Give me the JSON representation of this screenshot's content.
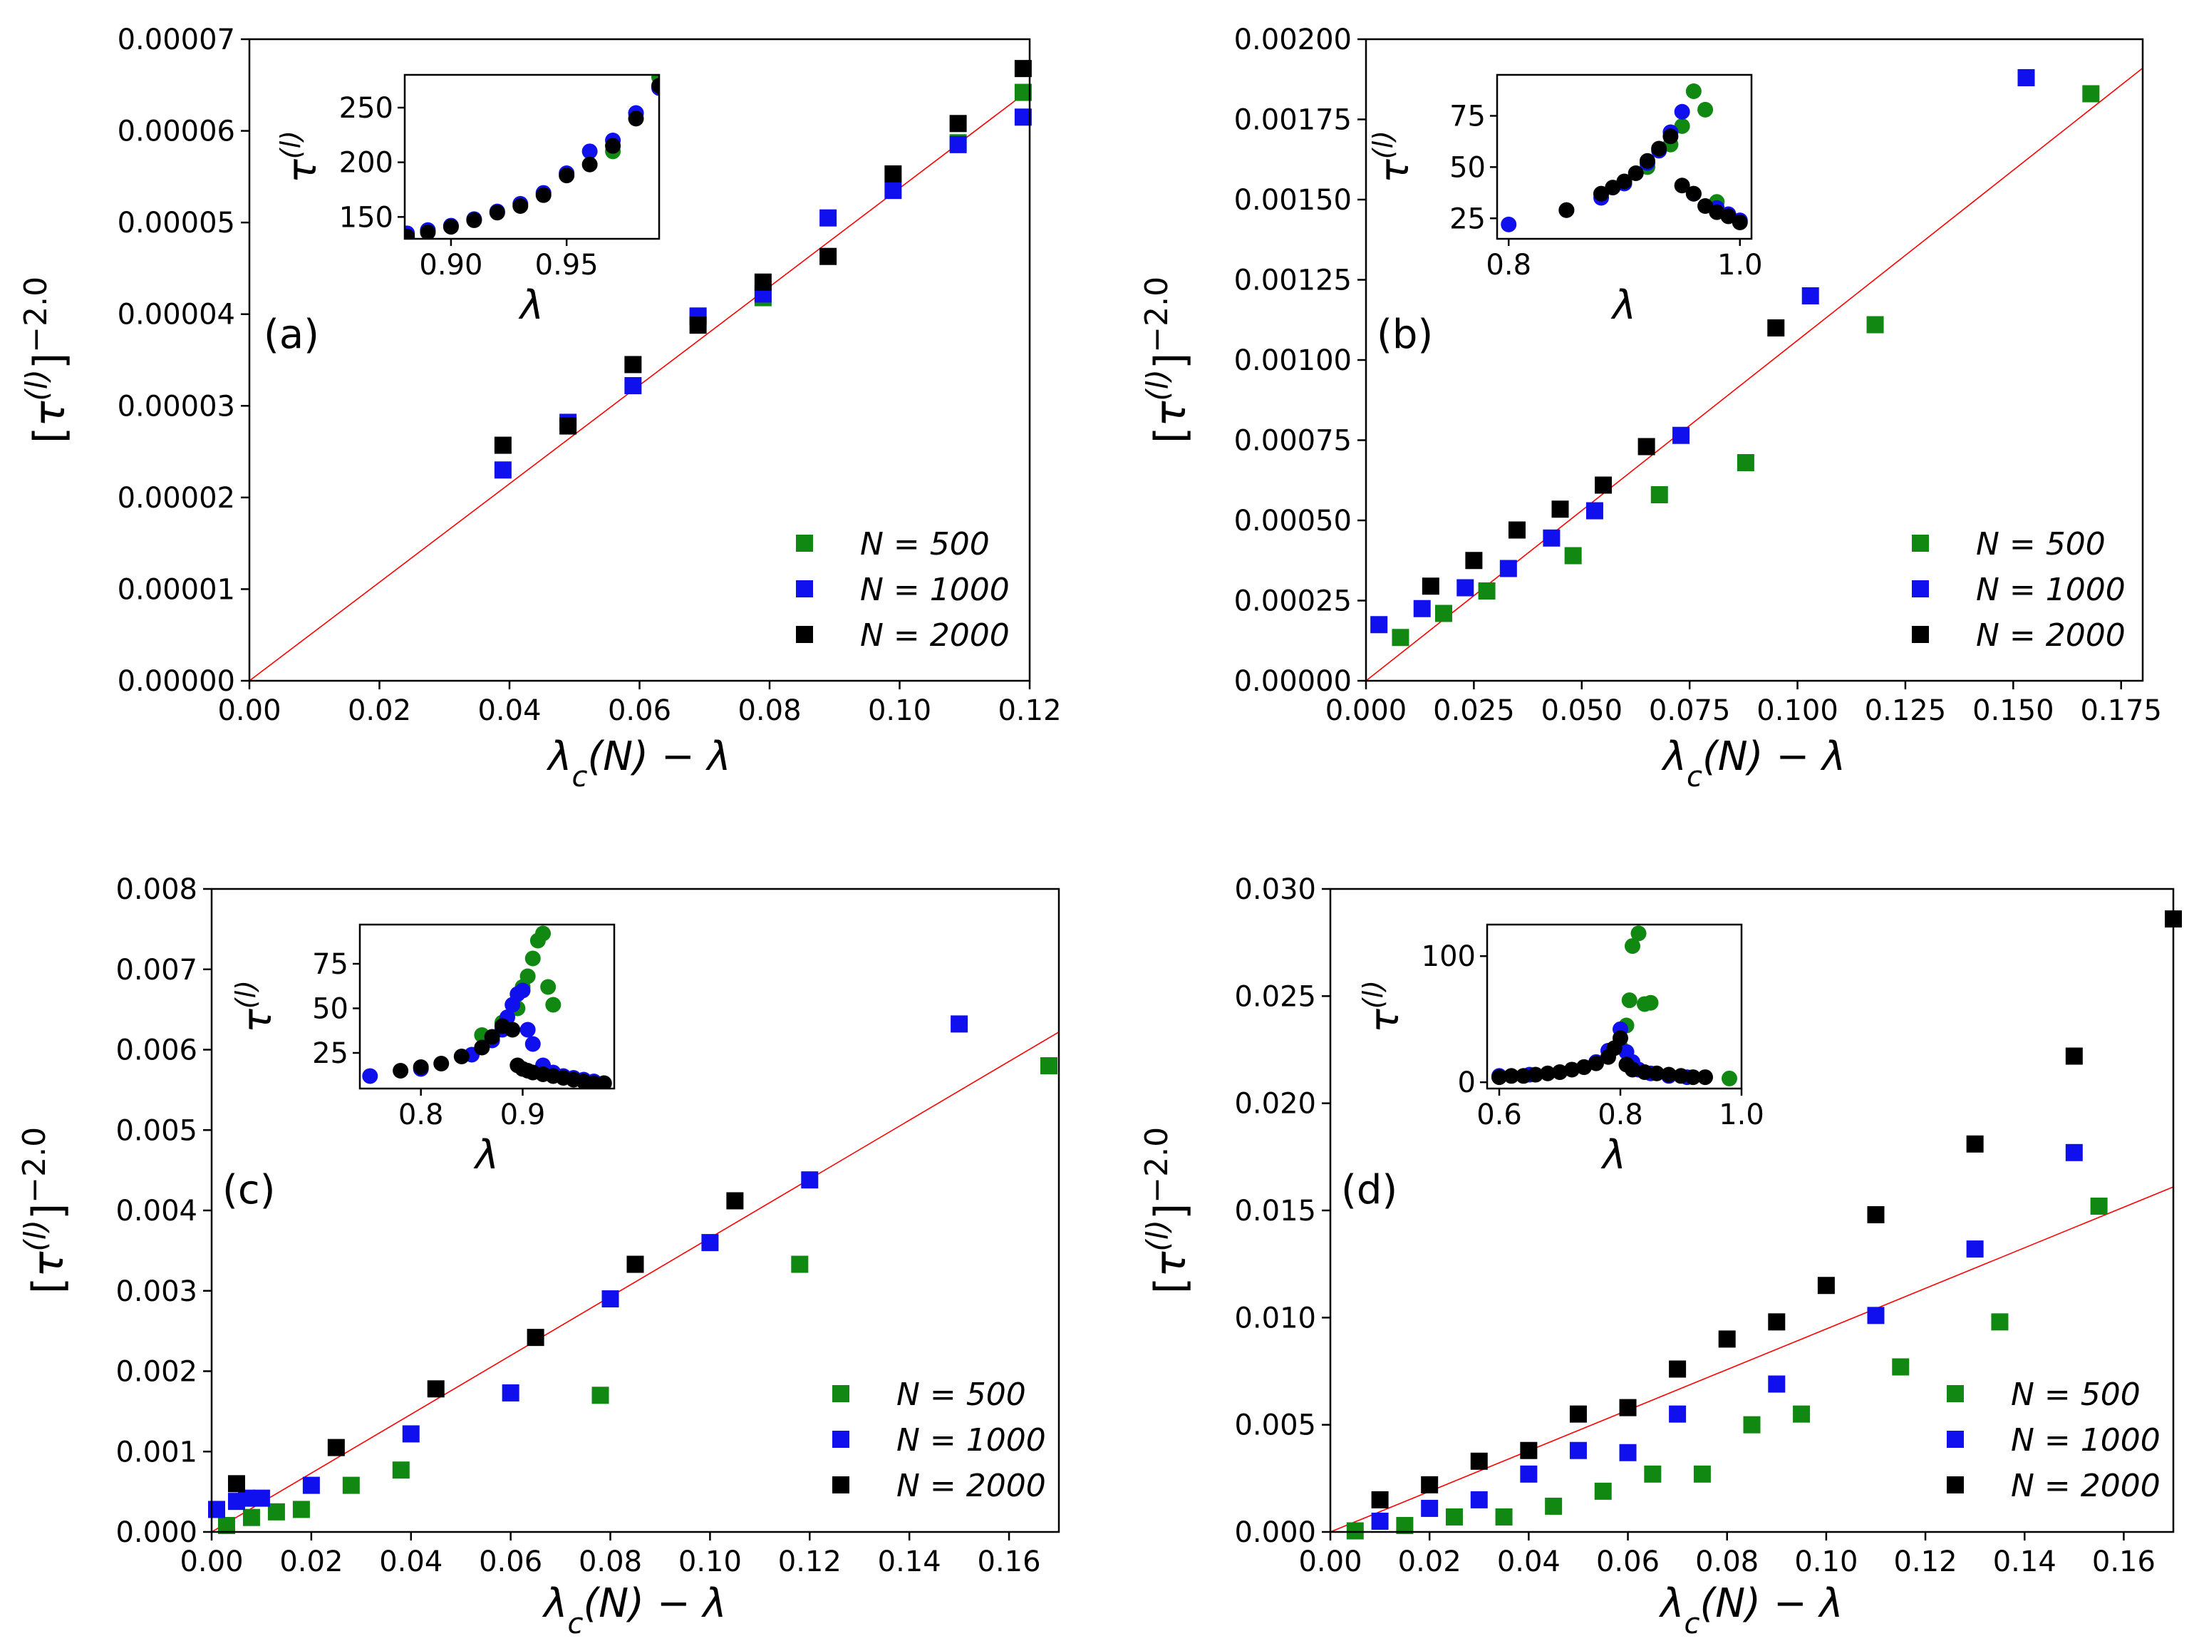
{
  "colors": {
    "N500": "#118811",
    "N1000": "#1010ee",
    "N2000": "#000000",
    "fit": "#ff0000"
  },
  "common": {
    "xlabel": "λc(N) − λ",
    "ylabel": "[τ(l)]−2.0",
    "inset_xlabel": "λ",
    "inset_ylabel": "τ(l)",
    "legend": [
      "N = 500",
      "N = 1000",
      "N = 2000"
    ]
  },
  "chart_data": [
    {
      "type": "scatter",
      "panel_label": "(a)",
      "xlim": [
        0,
        0.12
      ],
      "ylim": [
        0,
        7e-05
      ],
      "xticks": [
        0,
        0.02,
        0.04,
        0.06,
        0.08,
        0.1,
        0.12
      ],
      "xticklabels": [
        "0.00",
        "0.02",
        "0.04",
        "0.06",
        "0.08",
        "0.10",
        "0.12"
      ],
      "yticks": [
        0,
        1e-05,
        2e-05,
        3e-05,
        4e-05,
        5e-05,
        6e-05,
        7e-05
      ],
      "yticklabels": [
        "0.00000",
        "0.00001",
        "0.00002",
        "0.00003",
        "0.00004",
        "0.00005",
        "0.00006",
        "0.00007"
      ],
      "fit": {
        "x": [
          0,
          0.12
        ],
        "y": [
          0,
          6.45e-05
        ]
      },
      "series": [
        {
          "name": "N = 500",
          "color_key": "N500",
          "x": [
            0.069,
            0.079,
            0.109,
            0.119
          ],
          "y": [
            3.97e-05,
            4.18e-05,
            5.87e-05,
            6.42e-05
          ]
        },
        {
          "name": "N = 1000",
          "color_key": "N1000",
          "x": [
            0.039,
            0.049,
            0.059,
            0.069,
            0.079,
            0.089,
            0.099,
            0.109,
            0.119
          ],
          "y": [
            2.3e-05,
            2.82e-05,
            3.22e-05,
            3.98e-05,
            4.22e-05,
            5.05e-05,
            5.35e-05,
            5.85e-05,
            6.15e-05
          ]
        },
        {
          "name": "N = 2000",
          "color_key": "N2000",
          "x": [
            0.039,
            0.049,
            0.059,
            0.069,
            0.079,
            0.089,
            0.099,
            0.109,
            0.119
          ],
          "y": [
            2.57e-05,
            2.78e-05,
            3.45e-05,
            3.88e-05,
            4.35e-05,
            4.63e-05,
            5.53e-05,
            6.08e-05,
            6.68e-05
          ]
        }
      ],
      "inset": {
        "xlim": [
          0.88,
          0.99
        ],
        "ylim": [
          130,
          280
        ],
        "xticks": [
          0.9,
          0.95
        ],
        "xticklabels": [
          "0.90",
          "0.95"
        ],
        "yticks": [
          150,
          200,
          250
        ],
        "yticklabels": [
          "150",
          "200",
          "250"
        ],
        "series": [
          {
            "color_key": "N500",
            "x": [
              0.97,
              0.98,
              0.99
            ],
            "y": [
              210,
              245,
              278
            ]
          },
          {
            "color_key": "N1000",
            "x": [
              0.881,
              0.89,
              0.9,
              0.91,
              0.92,
              0.93,
              0.94,
              0.95,
              0.96,
              0.97,
              0.98,
              0.99
            ],
            "y": [
              135,
              138,
              142,
              148,
              155,
              162,
              172,
              190,
              210,
              220,
              245,
              268
            ]
          },
          {
            "color_key": "N2000",
            "x": [
              0.881,
              0.89,
              0.9,
              0.91,
              0.92,
              0.93,
              0.94,
              0.95,
              0.96,
              0.97,
              0.98,
              0.99
            ],
            "y": [
              132,
              136,
              141,
              147,
              154,
              160,
              170,
              188,
              198,
              215,
              240,
              270
            ]
          }
        ]
      }
    },
    {
      "type": "scatter",
      "panel_label": "(b)",
      "xlim": [
        0,
        0.18
      ],
      "ylim": [
        0,
        0.002
      ],
      "xticks": [
        0,
        0.025,
        0.05,
        0.075,
        0.1,
        0.125,
        0.15,
        0.175
      ],
      "xticklabels": [
        "0.000",
        "0.025",
        "0.050",
        "0.075",
        "0.100",
        "0.125",
        "0.150",
        "0.175"
      ],
      "yticks": [
        0,
        0.00025,
        0.0005,
        0.00075,
        0.001,
        0.00125,
        0.0015,
        0.00175,
        0.002
      ],
      "yticklabels": [
        "0.00000",
        "0.00025",
        "0.00050",
        "0.00075",
        "0.00100",
        "0.00125",
        "0.00150",
        "0.00175",
        "0.00200"
      ],
      "fit": {
        "x": [
          0,
          0.18
        ],
        "y": [
          0,
          0.00191
        ]
      },
      "series": [
        {
          "name": "N = 500",
          "color_key": "N500",
          "x": [
            0.008,
            0.018,
            0.028,
            0.048,
            0.068,
            0.088,
            0.118,
            0.168
          ],
          "y": [
            0.000135,
            0.00021,
            0.00028,
            0.00039,
            0.00058,
            0.00068,
            0.00111,
            0.00183
          ]
        },
        {
          "name": "N = 1000",
          "color_key": "N1000",
          "x": [
            0.003,
            0.013,
            0.023,
            0.033,
            0.043,
            0.053,
            0.073,
            0.103,
            0.153
          ],
          "y": [
            0.000175,
            0.000225,
            0.00029,
            0.00035,
            0.000445,
            0.00053,
            0.000765,
            0.0012,
            0.00188
          ]
        },
        {
          "name": "N = 2000",
          "color_key": "N2000",
          "x": [
            0.015,
            0.025,
            0.035,
            0.045,
            0.055,
            0.065,
            0.095
          ],
          "y": [
            0.000295,
            0.000375,
            0.00047,
            0.000535,
            0.00061,
            0.00073,
            0.0011
          ]
        }
      ],
      "inset": {
        "xlim": [
          0.79,
          1.01
        ],
        "ylim": [
          15,
          95
        ],
        "xticks": [
          0.8,
          1.0
        ],
        "xticklabels": [
          "0.8",
          "1.0"
        ],
        "yticks": [
          25,
          50,
          75
        ],
        "yticklabels": [
          "25",
          "50",
          "75"
        ],
        "series": [
          {
            "color_key": "N500",
            "x": [
              0.88,
              0.9,
              0.92,
              0.94,
              0.95,
              0.96,
              0.97,
              0.98,
              0.99
            ],
            "y": [
              37,
              42,
              50,
              61,
              70,
              87,
              78,
              33,
              26
            ]
          },
          {
            "color_key": "N1000",
            "x": [
              0.8,
              0.85,
              0.88,
              0.9,
              0.92,
              0.93,
              0.94,
              0.95,
              0.96,
              0.98,
              0.99,
              1.0
            ],
            "y": [
              22,
              29,
              35,
              42,
              52,
              58,
              67,
              77,
              37,
              30,
              27,
              24
            ]
          },
          {
            "color_key": "N2000",
            "x": [
              0.85,
              0.88,
              0.89,
              0.9,
              0.91,
              0.92,
              0.93,
              0.94,
              0.95,
              0.96,
              0.97,
              0.98,
              0.99,
              1.0
            ],
            "y": [
              29,
              37,
              40,
              43,
              47,
              53,
              59,
              65,
              41,
              37,
              31,
              28,
              26,
              23
            ]
          }
        ]
      }
    },
    {
      "type": "scatter",
      "panel_label": "(c)",
      "xlim": [
        0,
        0.17
      ],
      "ylim": [
        0,
        0.008
      ],
      "xticks": [
        0,
        0.02,
        0.04,
        0.06,
        0.08,
        0.1,
        0.12,
        0.14,
        0.16
      ],
      "xticklabels": [
        "0.00",
        "0.02",
        "0.04",
        "0.06",
        "0.08",
        "0.10",
        "0.12",
        "0.14",
        "0.16"
      ],
      "yticks": [
        0,
        0.001,
        0.002,
        0.003,
        0.004,
        0.005,
        0.006,
        0.007,
        0.008
      ],
      "yticklabels": [
        "0.000",
        "0.001",
        "0.002",
        "0.003",
        "0.004",
        "0.005",
        "0.006",
        "0.007",
        "0.008"
      ],
      "fit": {
        "x": [
          0,
          0.17
        ],
        "y": [
          0,
          0.00622
        ]
      },
      "series": [
        {
          "name": "N = 500",
          "color_key": "N500",
          "x": [
            0.003,
            0.008,
            0.013,
            0.018,
            0.028,
            0.038,
            0.078,
            0.118,
            0.168
          ],
          "y": [
            8e-05,
            0.00018,
            0.00025,
            0.00028,
            0.00058,
            0.00077,
            0.0017,
            0.00333,
            0.0058
          ]
        },
        {
          "name": "N = 1000",
          "color_key": "N1000",
          "x": [
            0.001,
            0.005,
            0.007,
            0.01,
            0.02,
            0.04,
            0.06,
            0.08,
            0.1,
            0.12,
            0.15
          ],
          "y": [
            0.00028,
            0.00038,
            0.00042,
            0.00042,
            0.00058,
            0.00122,
            0.00173,
            0.0029,
            0.0036,
            0.00438,
            0.00632
          ]
        },
        {
          "name": "N = 2000",
          "color_key": "N2000",
          "x": [
            0.005,
            0.025,
            0.045,
            0.065,
            0.085,
            0.105
          ],
          "y": [
            0.0006,
            0.00105,
            0.00178,
            0.00242,
            0.00333,
            0.00412
          ]
        }
      ],
      "inset": {
        "xlim": [
          0.74,
          0.99
        ],
        "ylim": [
          5,
          97
        ],
        "xticks": [
          0.8,
          0.9
        ],
        "xticklabels": [
          "0.8",
          "0.9"
        ],
        "yticks": [
          25,
          50,
          75
        ],
        "yticklabels": [
          "25",
          "50",
          "75"
        ],
        "series": [
          {
            "color_key": "N500",
            "x": [
              0.86,
              0.88,
              0.895,
              0.9,
              0.905,
              0.91,
              0.915,
              0.92,
              0.925,
              0.93,
              0.95
            ],
            "y": [
              35,
              42,
              50,
              62,
              68,
              78,
              88,
              92,
              62,
              52,
              10
            ]
          },
          {
            "color_key": "N1000",
            "x": [
              0.75,
              0.8,
              0.85,
              0.87,
              0.88,
              0.885,
              0.89,
              0.895,
              0.9,
              0.905,
              0.91,
              0.92,
              0.93,
              0.94,
              0.95,
              0.96,
              0.97,
              0.98
            ],
            "y": [
              12,
              16,
              24,
              32,
              38,
              45,
              52,
              58,
              60,
              38,
              30,
              18,
              14,
              12,
              11,
              10,
              9,
              8
            ]
          },
          {
            "color_key": "N2000",
            "x": [
              0.78,
              0.8,
              0.82,
              0.84,
              0.86,
              0.87,
              0.88,
              0.89,
              0.895,
              0.9,
              0.905,
              0.91,
              0.92,
              0.93,
              0.94,
              0.95,
              0.96,
              0.97,
              0.98
            ],
            "y": [
              15,
              17,
              19,
              23,
              28,
              34,
              40,
              38,
              18,
              16,
              15,
              14,
              13,
              12,
              11,
              10,
              9,
              8,
              8
            ]
          }
        ]
      }
    },
    {
      "type": "scatter",
      "panel_label": "(d)",
      "xlim": [
        0,
        0.17
      ],
      "ylim": [
        0,
        0.03
      ],
      "xticks": [
        0,
        0.02,
        0.04,
        0.06,
        0.08,
        0.1,
        0.12,
        0.14,
        0.16
      ],
      "xticklabels": [
        "0.00",
        "0.02",
        "0.04",
        "0.06",
        "0.08",
        "0.10",
        "0.12",
        "0.14",
        "0.16"
      ],
      "yticks": [
        0,
        0.005,
        0.01,
        0.015,
        0.02,
        0.025,
        0.03
      ],
      "yticklabels": [
        "0.000",
        "0.005",
        "0.010",
        "0.015",
        "0.020",
        "0.025",
        "0.030"
      ],
      "fit": {
        "x": [
          0,
          0.17
        ],
        "y": [
          0,
          0.0161
        ]
      },
      "series": [
        {
          "name": "N = 500",
          "color_key": "N500",
          "x": [
            0.005,
            0.015,
            0.025,
            0.035,
            0.045,
            0.055,
            0.065,
            0.075,
            0.085,
            0.095,
            0.115,
            0.135,
            0.155
          ],
          "y": [
            5e-05,
            0.0003,
            0.0007,
            0.0007,
            0.0012,
            0.0019,
            0.0027,
            0.0027,
            0.005,
            0.0055,
            0.0077,
            0.0098,
            0.0152
          ]
        },
        {
          "name": "N = 1000",
          "color_key": "N1000",
          "x": [
            0.01,
            0.02,
            0.03,
            0.04,
            0.05,
            0.06,
            0.07,
            0.09,
            0.11,
            0.13,
            0.15
          ],
          "y": [
            0.0005,
            0.0011,
            0.0015,
            0.0027,
            0.0038,
            0.0037,
            0.0055,
            0.0069,
            0.0101,
            0.0132,
            0.0177
          ]
        },
        {
          "name": "N = 2000",
          "color_key": "N2000",
          "x": [
            0.01,
            0.02,
            0.03,
            0.04,
            0.05,
            0.06,
            0.07,
            0.08,
            0.09,
            0.1,
            0.11,
            0.13,
            0.15,
            0.17
          ],
          "y": [
            0.0015,
            0.0022,
            0.0033,
            0.0038,
            0.0055,
            0.0058,
            0.0076,
            0.009,
            0.0098,
            0.0115,
            0.0148,
            0.0181,
            0.0222,
            0.0286
          ]
        }
      ],
      "inset": {
        "xlim": [
          0.58,
          1.0
        ],
        "ylim": [
          -5,
          125
        ],
        "xticks": [
          0.6,
          0.8,
          1.0
        ],
        "xticklabels": [
          "0.6",
          "0.8",
          "1.0"
        ],
        "yticks": [
          0,
          100
        ],
        "yticklabels": [
          "0",
          "100"
        ],
        "series": [
          {
            "color_key": "N500",
            "x": [
              0.8,
              0.81,
              0.815,
              0.82,
              0.83,
              0.84,
              0.85,
              0.98
            ],
            "y": [
              28,
              45,
              65,
              108,
              118,
              62,
              63,
              3
            ]
          },
          {
            "color_key": "N1000",
            "x": [
              0.6,
              0.65,
              0.7,
              0.74,
              0.76,
              0.78,
              0.8,
              0.81,
              0.82,
              0.83,
              0.85,
              0.88,
              0.91
            ],
            "y": [
              5,
              6,
              8,
              12,
              16,
              25,
              42,
              24,
              16,
              10,
              7,
              5,
              4
            ]
          },
          {
            "color_key": "N2000",
            "x": [
              0.6,
              0.62,
              0.64,
              0.66,
              0.68,
              0.7,
              0.72,
              0.74,
              0.76,
              0.78,
              0.79,
              0.8,
              0.81,
              0.82,
              0.84,
              0.86,
              0.88,
              0.9,
              0.92,
              0.94
            ],
            "y": [
              4,
              5,
              5,
              6,
              7,
              8,
              10,
              12,
              15,
              20,
              27,
              35,
              14,
              10,
              8,
              7,
              6,
              5,
              4,
              4
            ]
          }
        ]
      }
    }
  ]
}
